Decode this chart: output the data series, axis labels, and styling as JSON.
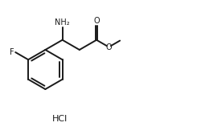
{
  "background_color": "#ffffff",
  "line_color": "#1a1a1a",
  "line_width": 1.4,
  "font_size_label": 7.0,
  "font_size_hcl": 8.0,
  "hcl_text": "HCl",
  "label_NH2": "NH₂",
  "label_F": "F",
  "label_O_top": "O",
  "label_O_right": "O",
  "figsize": [
    2.5,
    1.73
  ],
  "dpi": 100,
  "xlim": [
    0.0,
    10.0
  ],
  "ylim": [
    0.0,
    7.0
  ]
}
